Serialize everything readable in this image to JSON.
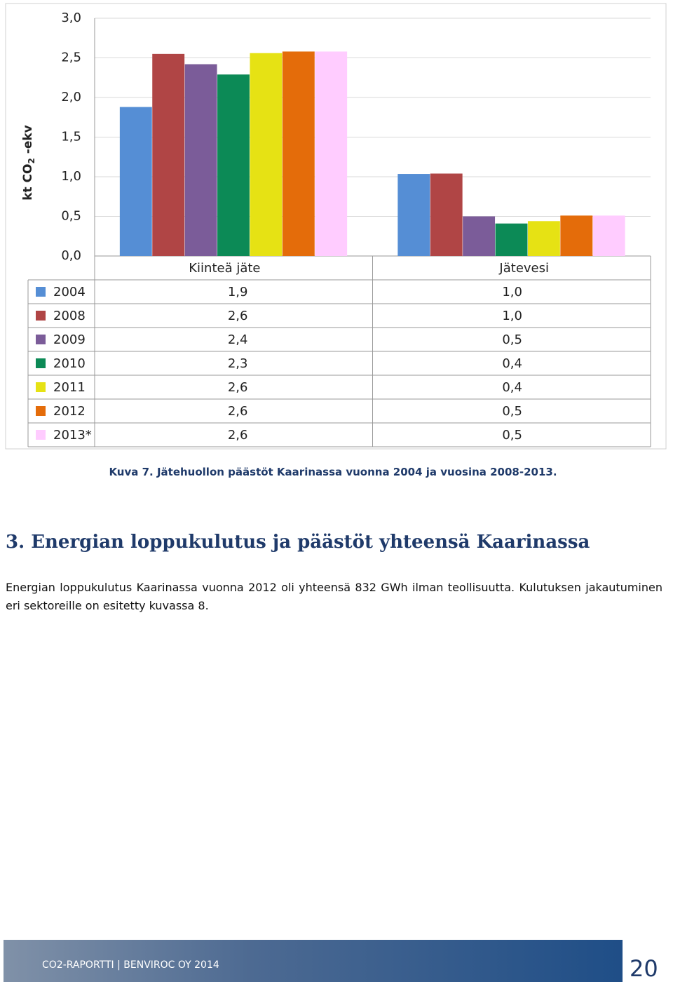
{
  "chart_data": {
    "type": "bar",
    "y_label": [
      "kt CO",
      "2",
      " -ekv"
    ],
    "categories": [
      "Kiinteä jäte",
      "Jätevesi"
    ],
    "series": [
      {
        "name": "2004",
        "color": "#558ed5",
        "values": [
          1.88,
          1.035
        ],
        "value_labels": [
          "1,9",
          "1,0"
        ]
      },
      {
        "name": "2008",
        "color": "#b04545",
        "values": [
          2.55,
          1.04
        ],
        "value_labels": [
          "2,6",
          "1,0"
        ]
      },
      {
        "name": "2009",
        "color": "#7b5c99",
        "values": [
          2.42,
          0.5
        ],
        "value_labels": [
          "2,4",
          "0,5"
        ]
      },
      {
        "name": "2010",
        "color": "#0c8a56",
        "values": [
          2.29,
          0.41
        ],
        "value_labels": [
          "2,3",
          "0,4"
        ]
      },
      {
        "name": "2011",
        "color": "#e6e214",
        "values": [
          2.56,
          0.44
        ],
        "value_labels": [
          "2,6",
          "0,4"
        ]
      },
      {
        "name": "2012",
        "color": "#e46c0a",
        "values": [
          2.58,
          0.51
        ],
        "value_labels": [
          "2,6",
          "0,5"
        ]
      },
      {
        "name": "2013*",
        "color": "#ffccff",
        "values": [
          2.58,
          0.51
        ],
        "value_labels": [
          "2,6",
          "0,5"
        ]
      }
    ],
    "ylim": [
      0,
      3
    ],
    "yticks": [
      {
        "value": 0,
        "label": "0,0"
      },
      {
        "value": 0.5,
        "label": "0,5"
      },
      {
        "value": 1,
        "label": "1,0"
      },
      {
        "value": 1.5,
        "label": "1,5"
      },
      {
        "value": 2,
        "label": "2,0"
      },
      {
        "value": 2.5,
        "label": "2,5"
      },
      {
        "value": 3,
        "label": "3,0"
      }
    ],
    "grid": true
  },
  "caption": "Kuva 7. Jätehuollon päästöt Kaarinassa  vuonna 2004 ja vuosina 2008-2013.",
  "section": {
    "heading": "3. Energian loppukulutus ja päästöt yhteensä Kaarinassa",
    "paragraph": "Energian loppukulutus Kaarinassa vuonna 2012 oli yhteensä 832 GWh ilman teollisuutta. Kulutuksen jakautuminen eri sektoreille on esitetty kuvassa 8."
  },
  "footer": {
    "text": "CO2-RAPORTTI | BENVIROC OY 2014",
    "page": "20"
  }
}
